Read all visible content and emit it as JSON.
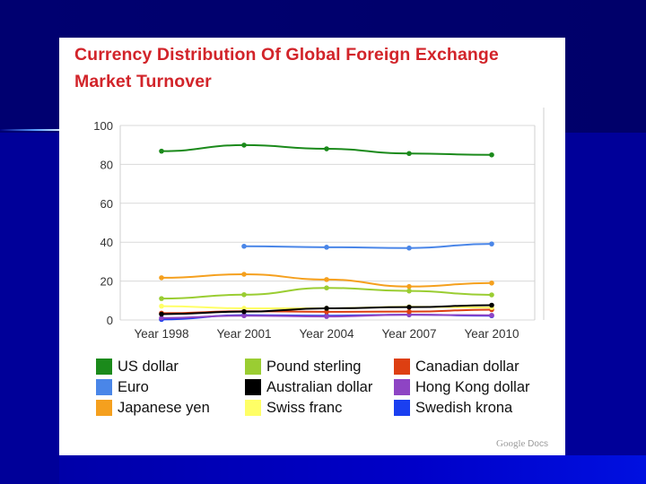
{
  "chart_data": {
    "type": "line",
    "title": "Currency Distribution Of Global Foreign Exchange Market Turnover",
    "categories": [
      "Year 1998",
      "Year 2001",
      "Year 2004",
      "Year 2007",
      "Year 2010"
    ],
    "ylim": [
      0,
      100
    ],
    "yticks": [
      100,
      80,
      60,
      40,
      20,
      0
    ],
    "grid": true,
    "legend_position": "bottom",
    "series": [
      {
        "name": "US dollar",
        "color": "#1b8a1b",
        "values": [
          86.8,
          89.9,
          88.0,
          85.6,
          84.9
        ]
      },
      {
        "name": "Euro",
        "color": "#4a86e8",
        "values": [
          null,
          37.9,
          37.4,
          37.0,
          39.1
        ]
      },
      {
        "name": "Japanese yen",
        "color": "#f5a01e",
        "values": [
          21.7,
          23.5,
          20.8,
          17.2,
          19.0
        ]
      },
      {
        "name": "Pound sterling",
        "color": "#9acd32",
        "values": [
          11.0,
          13.0,
          16.5,
          14.9,
          12.9
        ]
      },
      {
        "name": "Australian dollar",
        "color": "#000000",
        "values": [
          3.0,
          4.3,
          6.0,
          6.6,
          7.6
        ]
      },
      {
        "name": "Swiss franc",
        "color": "#ffff66",
        "values": [
          7.1,
          6.0,
          6.0,
          6.8,
          6.4
        ]
      },
      {
        "name": "Canadian dollar",
        "color": "#dd3f12",
        "values": [
          3.5,
          4.5,
          4.2,
          4.3,
          5.3
        ]
      },
      {
        "name": "Hong Kong dollar",
        "color": "#8e44c4",
        "values": [
          1.0,
          2.2,
          1.8,
          2.7,
          2.4
        ]
      },
      {
        "name": "Swedish krona",
        "color": "#1a3ff0",
        "values": [
          0.3,
          2.5,
          2.2,
          2.7,
          2.2
        ]
      }
    ]
  },
  "legend": {
    "items": [
      {
        "label": "US dollar",
        "color": "#1b8a1b"
      },
      {
        "label": "Pound sterling",
        "color": "#9acd32"
      },
      {
        "label": "Canadian dollar",
        "color": "#dd3f12"
      },
      {
        "label": "Euro",
        "color": "#4a86e8"
      },
      {
        "label": "Australian dollar",
        "color": "#000000"
      },
      {
        "label": "Hong Kong dollar",
        "color": "#8e44c4"
      },
      {
        "label": "Japanese yen",
        "color": "#f5a01e"
      },
      {
        "label": "Swiss franc",
        "color": "#ffff66"
      },
      {
        "label": "Swedish krona",
        "color": "#1a3ff0"
      }
    ]
  },
  "watermark": {
    "brand": "Google",
    "product": "Docs"
  }
}
